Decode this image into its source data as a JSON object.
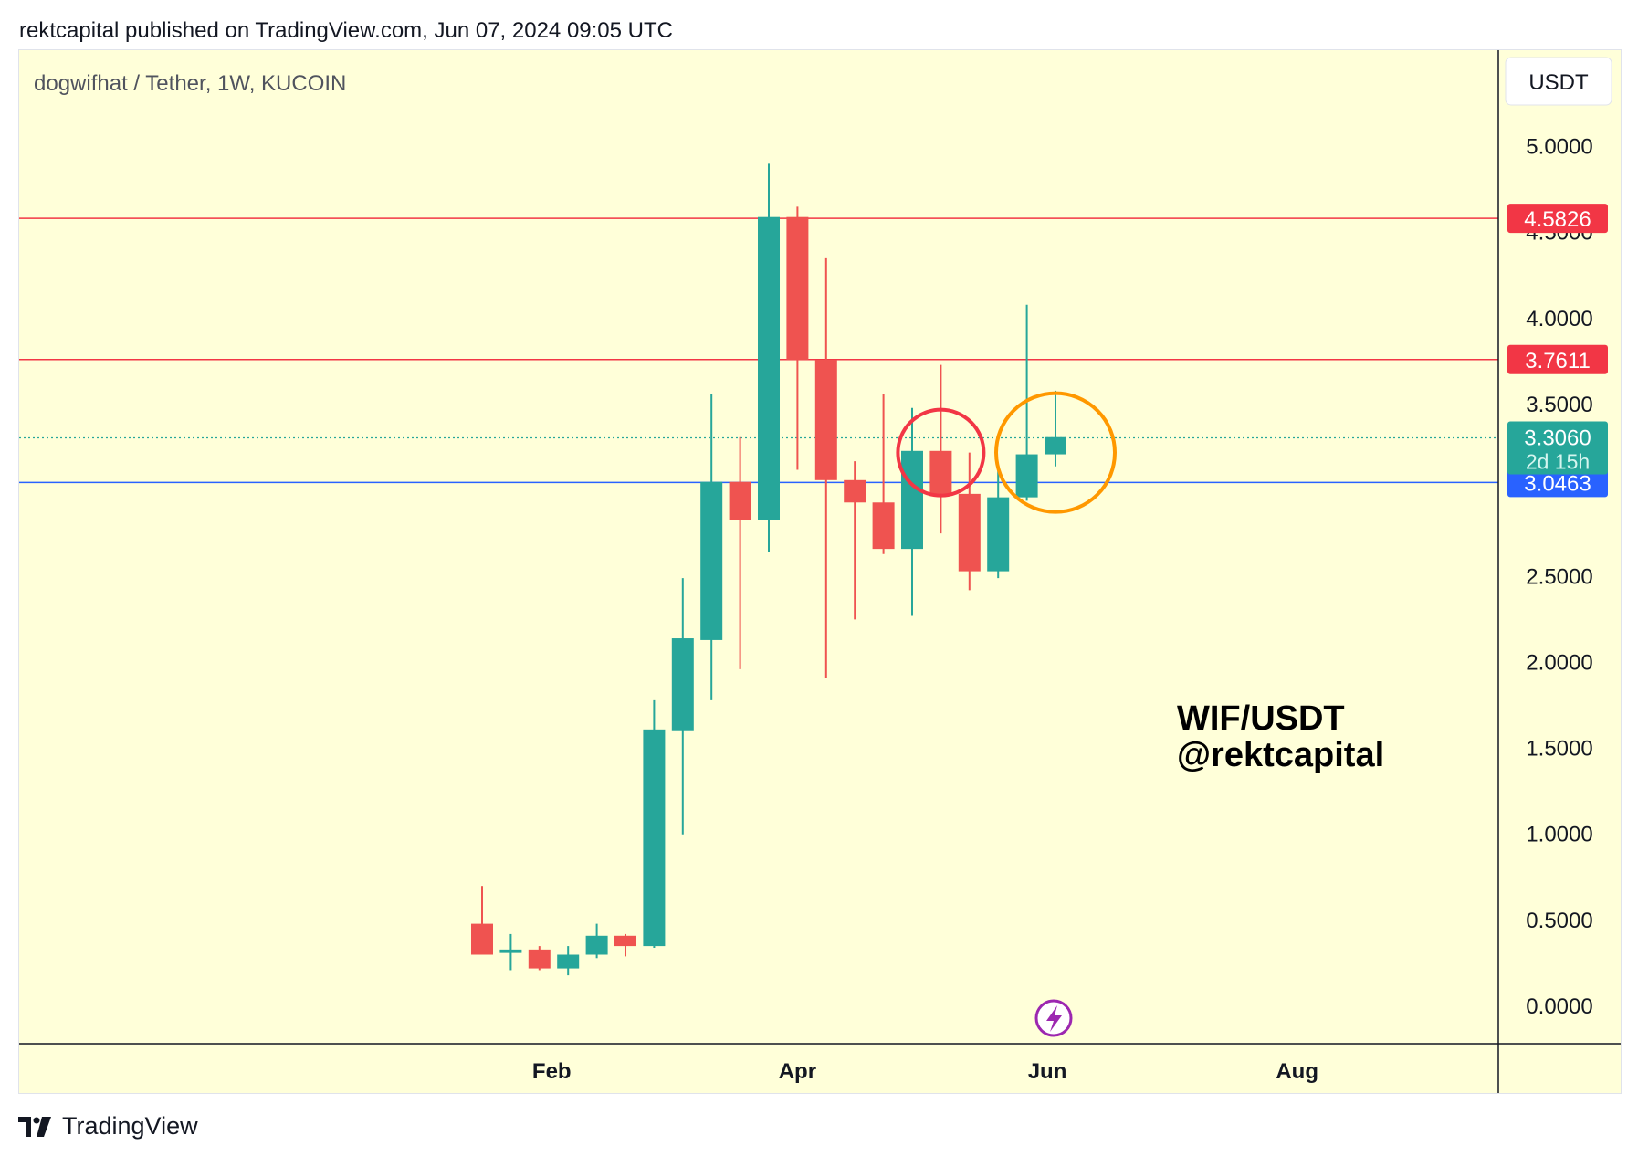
{
  "header": {
    "publish_line": "rektcapital published on TradingView.com, Jun 07, 2024 09:05 UTC"
  },
  "footer": {
    "brand": "TradingView"
  },
  "colors": {
    "background": "#ffffd9",
    "up": "#26a69a",
    "down": "#ef5350",
    "resistance": "#f23645",
    "support": "#2962ff",
    "red_circle": "#f23645",
    "orange_circle": "#ff9800",
    "bolt": "#9c27b0"
  },
  "chart_data": {
    "type": "candlestick",
    "title": "dogwifhat / Tether, 1W, KUCOIN",
    "currency_button": "USDT",
    "annotation_lines": [
      "WIF/USDT",
      "@rektcapital"
    ],
    "x_tick_labels": [
      "Feb",
      "Apr",
      "Jun",
      "Aug"
    ],
    "y_tick_labels": [
      "5.0000",
      "4.5000",
      "4.0000",
      "3.5000",
      "2.5000",
      "2.0000",
      "1.5000",
      "1.0000",
      "0.5000",
      "0.0000"
    ],
    "ylim": [
      -0.3,
      5.3
    ],
    "candles": [
      {
        "date": "2024-01-15",
        "o": 0.48,
        "h": 0.7,
        "l": 0.3,
        "c": 0.3
      },
      {
        "date": "2024-01-22",
        "o": 0.31,
        "h": 0.42,
        "l": 0.21,
        "c": 0.33
      },
      {
        "date": "2024-01-29",
        "o": 0.33,
        "h": 0.35,
        "l": 0.21,
        "c": 0.22
      },
      {
        "date": "2024-02-05",
        "o": 0.22,
        "h": 0.35,
        "l": 0.18,
        "c": 0.3
      },
      {
        "date": "2024-02-12",
        "o": 0.3,
        "h": 0.48,
        "l": 0.28,
        "c": 0.41
      },
      {
        "date": "2024-02-19",
        "o": 0.41,
        "h": 0.42,
        "l": 0.29,
        "c": 0.35
      },
      {
        "date": "2024-02-26",
        "o": 0.35,
        "h": 1.78,
        "l": 0.34,
        "c": 1.61
      },
      {
        "date": "2024-03-04",
        "o": 1.6,
        "h": 2.49,
        "l": 1.0,
        "c": 2.14
      },
      {
        "date": "2024-03-11",
        "o": 2.13,
        "h": 3.56,
        "l": 1.78,
        "c": 3.05
      },
      {
        "date": "2024-03-18",
        "o": 3.05,
        "h": 3.31,
        "l": 1.96,
        "c": 2.83
      },
      {
        "date": "2024-03-25",
        "o": 2.83,
        "h": 4.9,
        "l": 2.64,
        "c": 4.59
      },
      {
        "date": "2024-04-01",
        "o": 4.59,
        "h": 4.65,
        "l": 3.12,
        "c": 3.76
      },
      {
        "date": "2024-04-08",
        "o": 3.76,
        "h": 4.35,
        "l": 1.91,
        "c": 3.06
      },
      {
        "date": "2024-04-15",
        "o": 3.06,
        "h": 3.17,
        "l": 2.25,
        "c": 2.93
      },
      {
        "date": "2024-04-22",
        "o": 2.93,
        "h": 3.56,
        "l": 2.63,
        "c": 2.66
      },
      {
        "date": "2024-04-29",
        "o": 2.66,
        "h": 3.48,
        "l": 2.27,
        "c": 3.23
      },
      {
        "date": "2024-05-06",
        "o": 3.23,
        "h": 3.73,
        "l": 2.75,
        "c": 2.98
      },
      {
        "date": "2024-05-13",
        "o": 2.98,
        "h": 3.22,
        "l": 2.42,
        "c": 2.53
      },
      {
        "date": "2024-05-20",
        "o": 2.53,
        "h": 3.15,
        "l": 2.49,
        "c": 2.96
      },
      {
        "date": "2024-05-27",
        "o": 2.96,
        "h": 4.08,
        "l": 2.94,
        "c": 3.21
      },
      {
        "date": "2024-06-03",
        "o": 3.21,
        "h": 3.58,
        "l": 3.14,
        "c": 3.31
      }
    ],
    "horizontal_lines": [
      {
        "value": 4.5826,
        "label": "4.5826",
        "color": "#f23645"
      },
      {
        "value": 3.7611,
        "label": "3.7611",
        "color": "#f23645"
      },
      {
        "value": 3.0463,
        "label": "3.0463",
        "color": "#2962ff"
      }
    ],
    "last_price": {
      "value": 3.306,
      "label": "3.3060",
      "countdown": "2d 15h",
      "color": "#26a69a"
    },
    "circles": [
      {
        "date": "2024-05-06",
        "price": 3.22,
        "color": "#f23645"
      },
      {
        "date": "2024-06-03",
        "price": 3.22,
        "color": "#ff9800"
      }
    ]
  }
}
